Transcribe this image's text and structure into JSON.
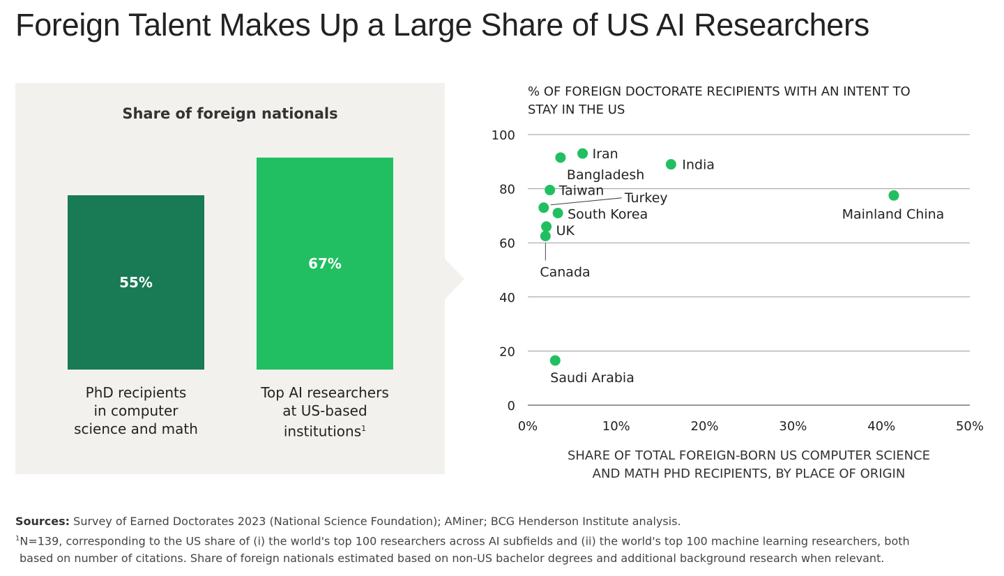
{
  "title": "Foreign Talent Makes Up a Large Share of US AI Researchers",
  "chart_data": [
    {
      "type": "bar",
      "title": "Share of foreign nationals",
      "categories": [
        "PhD recipients in computer science and math",
        "Top AI researchers at US-based institutions"
      ],
      "category_lines": [
        [
          "PhD recipients",
          "in computer",
          "science and math"
        ],
        [
          "Top AI researchers",
          "at US-based",
          "institutions"
        ]
      ],
      "footnote_marks": [
        "",
        "1"
      ],
      "values": [
        55,
        67
      ],
      "value_labels": [
        "55%",
        "67%"
      ],
      "colors": [
        "#197a56",
        "#21bf61"
      ]
    },
    {
      "type": "scatter",
      "title": "% OF FOREIGN DOCTORATE RECIPIENTS WITH AN INTENT TO STAY IN THE US",
      "title_lines": [
        "% OF FOREIGN DOCTORATE RECIPIENTS WITH AN INTENT TO",
        "STAY IN THE US"
      ],
      "xlabel": "SHARE OF TOTAL FOREIGN-BORN US COMPUTER SCIENCE AND MATH PHD RECIPIENTS, BY PLACE OF ORIGIN",
      "xlabel_lines": [
        "SHARE OF TOTAL FOREIGN-BORN US COMPUTER SCIENCE",
        "AND MATH PHD RECIPIENTS, BY PLACE OF ORIGIN"
      ],
      "xlim": [
        0,
        50
      ],
      "ylim": [
        0,
        100
      ],
      "x_ticks": [
        0,
        10,
        20,
        30,
        40,
        50
      ],
      "x_tick_labels": [
        "0%",
        "10%",
        "20%",
        "30%",
        "40%",
        "50%"
      ],
      "y_ticks": [
        0,
        20,
        40,
        60,
        80,
        100
      ],
      "y_tick_labels": [
        "0",
        "20",
        "40",
        "60",
        "80",
        "100"
      ],
      "grid": true,
      "point_color": "#21bf61",
      "points": [
        {
          "label": "Iran",
          "x": 6.2,
          "y": 93
        },
        {
          "label": "Bangladesh",
          "x": 3.7,
          "y": 91.5
        },
        {
          "label": "India",
          "x": 16.2,
          "y": 89
        },
        {
          "label": "Taiwan",
          "x": 2.5,
          "y": 79.5
        },
        {
          "label": "Turkey",
          "x": 1.8,
          "y": 73
        },
        {
          "label": "South Korea",
          "x": 3.4,
          "y": 71
        },
        {
          "label": "UK",
          "x": 2.1,
          "y": 66
        },
        {
          "label": "Canada",
          "x": 2.0,
          "y": 62.5
        },
        {
          "label": "Mainland China",
          "x": 41.4,
          "y": 77.5
        },
        {
          "label": "Saudi Arabia",
          "x": 3.1,
          "y": 16.5
        }
      ]
    }
  ],
  "sources": {
    "label": "Sources:",
    "text": "Survey of Earned Doctorates 2023 (National Science Foundation); AMiner; BCG Henderson Institute analysis.",
    "footnote_mark": "1",
    "footnote_line1": "N=139, corresponding to the US share of (i) the world's top 100 researchers across AI subfields and (ii) the world's top 100 machine learning researchers, both",
    "footnote_line2": "based on number of citations. Share of foreign nationals estimated based on non-US bachelor degrees and additional background research when relevant."
  }
}
